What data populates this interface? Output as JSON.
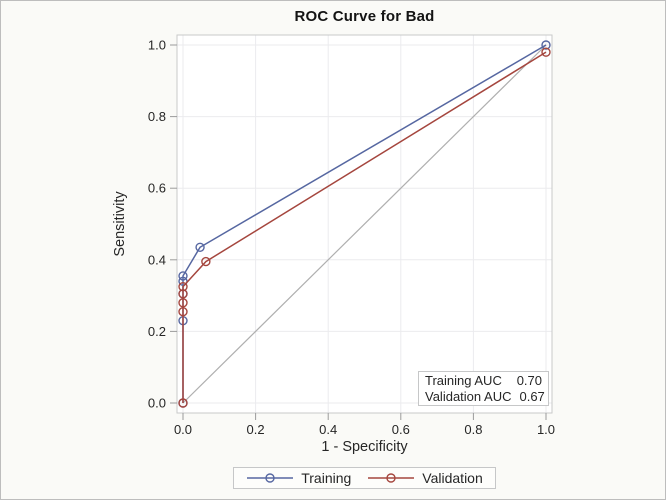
{
  "figure": {
    "background": "#FAFAF7",
    "border_color": "#BDBDBD",
    "wall_color": "#FFFFFF",
    "frame_color": "#C8C9CA",
    "grid_color": "#EBEBEE",
    "tick_color": "#9B9B9B",
    "text_color": "#262626"
  },
  "chart_data": {
    "type": "line",
    "title": "ROC Curve for Bad",
    "xlabel": "1 - Specificity",
    "ylabel": "Sensitivity",
    "xlim": [
      0,
      1
    ],
    "ylim": [
      0,
      1
    ],
    "grid": true,
    "legend_position": "bottom-center",
    "xticks": [
      "0.0",
      "0.2",
      "0.4",
      "0.6",
      "0.8",
      "1.0"
    ],
    "yticks": [
      "0.0",
      "0.2",
      "0.4",
      "0.6",
      "0.8",
      "1.0"
    ],
    "reference_line": {
      "from": [
        0,
        0
      ],
      "to": [
        1,
        1
      ],
      "color": "#AFAFAF"
    },
    "series": [
      {
        "name": "Training",
        "color": "#5667A1",
        "marker": "circle",
        "points": [
          [
            0,
            0
          ],
          [
            0,
            0.23
          ],
          [
            0,
            0.305
          ],
          [
            0,
            0.34
          ],
          [
            0,
            0.355
          ],
          [
            0.047,
            0.435
          ],
          [
            1.0,
            1.0
          ]
        ]
      },
      {
        "name": "Validation",
        "color": "#A5463E",
        "marker": "circle",
        "points": [
          [
            0,
            0
          ],
          [
            0,
            0.255
          ],
          [
            0,
            0.28
          ],
          [
            0,
            0.305
          ],
          [
            0,
            0.325
          ],
          [
            0.063,
            0.395
          ],
          [
            1.0,
            0.98
          ]
        ]
      }
    ],
    "inset": {
      "rows": [
        {
          "label": "Training AUC",
          "value": "0.70"
        },
        {
          "label": "Validation AUC",
          "value": "0.67"
        }
      ]
    }
  }
}
